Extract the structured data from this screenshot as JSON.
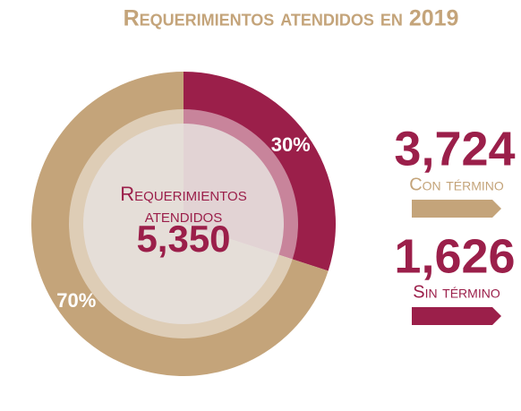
{
  "chart_data": {
    "type": "donut",
    "title": "Requerimientos atendidos en 2019",
    "center_label": [
      "Requerimientos",
      "atendidos"
    ],
    "total": 5350,
    "total_label": "5,350",
    "categories": [
      "Sin término",
      "Con término"
    ],
    "values": [
      30,
      70
    ],
    "value_labels": [
      "30%",
      "70%"
    ],
    "counts": [
      1626,
      3724
    ],
    "count_labels": [
      "1,626",
      "3,724"
    ],
    "colors": [
      "#9b1f4a",
      "#c4a47a"
    ]
  }
}
